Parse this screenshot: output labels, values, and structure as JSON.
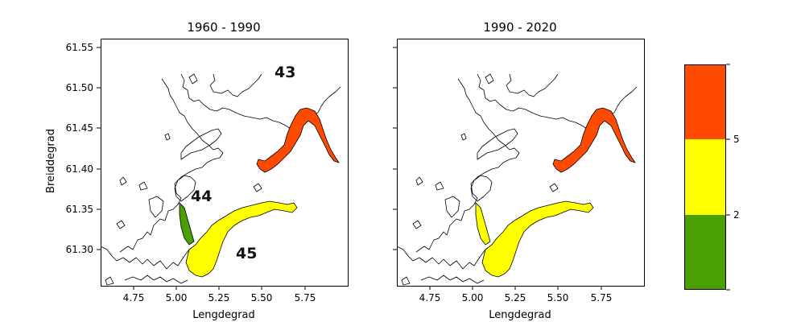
{
  "panels": [
    {
      "title": "1960 - 1990",
      "xlabel": "Lengdegrad",
      "ylabel": "Breiddegrad",
      "regions": [
        {
          "id": "43",
          "label": "43",
          "class": "5+",
          "color": "#ff4a00"
        },
        {
          "id": "44",
          "label": "44",
          "class": "0-2",
          "color": "#4aa000"
        },
        {
          "id": "45",
          "label": "45",
          "class": "2-5",
          "color": "#ffff00"
        }
      ]
    },
    {
      "title": "1990 - 2020",
      "xlabel": "Lengdegrad",
      "ylabel": "",
      "regions": [
        {
          "id": "43",
          "label": "",
          "class": "5+",
          "color": "#ff4a00"
        },
        {
          "id": "44",
          "label": "",
          "class": "2-5",
          "color": "#ffff00"
        },
        {
          "id": "45",
          "label": "",
          "class": "2-5",
          "color": "#ffff00"
        }
      ]
    }
  ],
  "axes": {
    "xlim": [
      4.58,
      5.95
    ],
    "ylim": [
      61.252,
      61.56
    ],
    "xticks": [
      "4.75",
      "5.00",
      "5.25",
      "5.50",
      "5.75"
    ],
    "yticks": [
      "61.30",
      "61.35",
      "61.40",
      "61.45",
      "61.50",
      "61.55"
    ]
  },
  "colorbar": {
    "bands": [
      {
        "color": "#ff4a00"
      },
      {
        "color": "#ffff00"
      },
      {
        "color": "#4aa000"
      }
    ],
    "ticks": [
      "5",
      "2"
    ]
  }
}
